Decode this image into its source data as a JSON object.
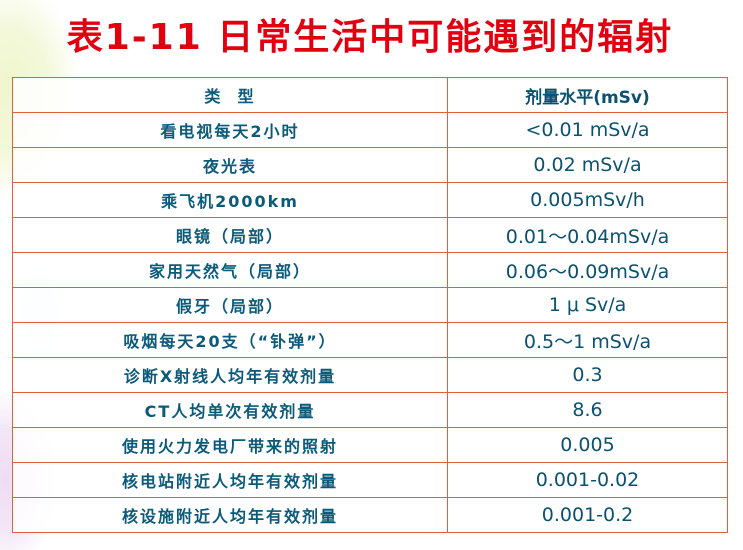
{
  "title": "表1-11 日常生活中可能遇到的辐射",
  "table": {
    "headers": [
      "类  型",
      "剂量水平(mSv)"
    ],
    "rows": [
      [
        "看电视每天2小时",
        "<0.01 mSv/a"
      ],
      [
        "夜光表",
        "0.02 mSv/a"
      ],
      [
        "乘飞机2000km",
        "0.005mSv/h"
      ],
      [
        "眼镜（局部）",
        "0.01～0.04mSv/a"
      ],
      [
        "家用天然气（局部）",
        "0.06～0.09mSv/a"
      ],
      [
        "假牙（局部）",
        "1 μ Sv/a"
      ],
      [
        "吸烟每天20支（“钋弹”）",
        "0.5～1 mSv/a"
      ],
      [
        "诊断X射线人均年有效剂量",
        "0.3"
      ],
      [
        "CT人均单次有效剂量",
        "8.6"
      ],
      [
        "使用火力发电厂带来的照射",
        "0.005"
      ],
      [
        "核电站附近人均年有效剂量",
        "0.001-0.02"
      ],
      [
        "核设施附近人均年有效剂量",
        "0.001-0.2"
      ]
    ]
  },
  "colors": {
    "title": "#e00010",
    "border": "#e0603a",
    "text": "#0b5a7a"
  }
}
